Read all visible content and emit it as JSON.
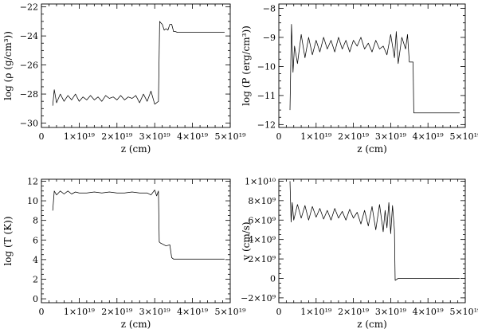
{
  "chart_data": [
    {
      "type": "line",
      "title": "",
      "xlabel": "z (cm)",
      "ylabel": "log (ρ (g/cm³))",
      "xlim": [
        0,
        5e+19
      ],
      "ylim": [
        -30.3,
        -21.8
      ],
      "x_ticks": [
        0,
        1e+19,
        2e+19,
        3e+19,
        4e+19,
        5e+19
      ],
      "x_tick_labels": [
        "0",
        "1×10¹⁹",
        "2×10¹⁹",
        "3×10¹⁹",
        "4×10¹⁹",
        "5×10¹⁹"
      ],
      "y_ticks": [
        -30,
        -28,
        -26,
        -24,
        -22
      ],
      "y_tick_labels": [
        "−30",
        "−28",
        "−26",
        "−24",
        "−22"
      ],
      "grid": false,
      "series": [
        {
          "x": [
            3e+18,
            3.4e+18,
            4e+18,
            5e+18,
            6e+18,
            7e+18,
            8e+18,
            9e+18,
            1e+19,
            1.1e+19,
            1.2e+19,
            1.3e+19,
            1.4e+19,
            1.5e+19,
            1.6e+19,
            1.7e+19,
            1.8e+19,
            1.9e+19,
            2e+19,
            2.1e+19,
            2.2e+19,
            2.3e+19,
            2.4e+19,
            2.5e+19,
            2.6e+19,
            2.7e+19,
            2.8e+19,
            2.9e+19,
            3e+19,
            3.1e+19,
            3.13e+19,
            3.16e+19,
            3.2e+19,
            3.25e+19,
            3.3e+19,
            3.35e+19,
            3.4e+19,
            3.45e+19,
            3.5e+19,
            3.55e+19,
            3.6e+19,
            4e+19,
            4.5e+19,
            4.85e+19
          ],
          "y": [
            -28.8,
            -27.7,
            -28.6,
            -28.0,
            -28.5,
            -28.1,
            -28.4,
            -28.0,
            -28.5,
            -28.2,
            -28.4,
            -28.1,
            -28.4,
            -28.2,
            -28.5,
            -28.1,
            -28.3,
            -28.2,
            -28.4,
            -28.1,
            -28.4,
            -28.2,
            -28.3,
            -28.1,
            -28.6,
            -28.0,
            -28.5,
            -27.8,
            -28.7,
            -28.5,
            -23.0,
            -23.1,
            -23.2,
            -23.6,
            -23.5,
            -23.6,
            -23.2,
            -23.2,
            -23.7,
            -23.7,
            -23.75,
            -23.75,
            -23.75,
            -23.75
          ]
        }
      ]
    },
    {
      "type": "line",
      "title": "",
      "xlabel": "z (cm)",
      "ylabel": "log (P (erg/cm³))",
      "xlim": [
        0,
        5e+19
      ],
      "ylim": [
        -12.1,
        -7.85
      ],
      "x_ticks": [
        0,
        1e+19,
        2e+19,
        3e+19,
        4e+19,
        5e+19
      ],
      "x_tick_labels": [
        "0",
        "1×10¹⁹",
        "2×10¹⁹",
        "3×10¹⁹",
        "4×10¹⁹",
        "5×10¹⁹"
      ],
      "y_ticks": [
        -12,
        -11,
        -10,
        -9,
        -8
      ],
      "y_tick_labels": [
        "−12",
        "−11",
        "−10",
        "−9",
        "−8"
      ],
      "grid": false,
      "series": [
        {
          "x": [
            3e+18,
            3.4e+18,
            3.8e+18,
            4.2e+18,
            5e+18,
            6e+18,
            7e+18,
            8e+18,
            9e+18,
            1e+19,
            1.1e+19,
            1.2e+19,
            1.3e+19,
            1.4e+19,
            1.5e+19,
            1.6e+19,
            1.7e+19,
            1.8e+19,
            1.9e+19,
            2e+19,
            2.1e+19,
            2.2e+19,
            2.3e+19,
            2.4e+19,
            2.5e+19,
            2.6e+19,
            2.7e+19,
            2.8e+19,
            2.9e+19,
            3e+19,
            3.1e+19,
            3.15e+19,
            3.2e+19,
            3.3e+19,
            3.4e+19,
            3.45e+19,
            3.5e+19,
            3.6e+19,
            3.62e+19,
            4e+19,
            4.5e+19,
            4.85e+19
          ],
          "y": [
            -11.5,
            -8.55,
            -10.2,
            -9.3,
            -9.9,
            -8.9,
            -9.7,
            -9.0,
            -9.6,
            -9.1,
            -9.5,
            -9.0,
            -9.4,
            -9.1,
            -9.5,
            -9.0,
            -9.4,
            -9.1,
            -9.5,
            -9.1,
            -9.3,
            -9.0,
            -9.4,
            -9.2,
            -9.5,
            -9.1,
            -9.4,
            -9.3,
            -9.6,
            -8.9,
            -9.7,
            -8.8,
            -9.9,
            -9.0,
            -9.4,
            -8.9,
            -9.85,
            -9.85,
            -11.6,
            -11.6,
            -11.6,
            -11.6
          ]
        }
      ]
    },
    {
      "type": "line",
      "title": "",
      "xlabel": "z (cm)",
      "ylabel": "log (T (K))",
      "xlim": [
        0,
        5e+19
      ],
      "ylim": [
        -0.4,
        12.2
      ],
      "x_ticks": [
        0,
        1e+19,
        2e+19,
        3e+19,
        4e+19,
        5e+19
      ],
      "x_tick_labels": [
        "0",
        "1×10¹⁹",
        "2×10¹⁹",
        "3×10¹⁹",
        "4×10¹⁹",
        "5×10¹⁹"
      ],
      "y_ticks": [
        0,
        2,
        4,
        6,
        8,
        10,
        12
      ],
      "y_tick_labels": [
        "0",
        "2",
        "4",
        "6",
        "8",
        "10",
        "12"
      ],
      "grid": false,
      "series": [
        {
          "x": [
            3e+18,
            3.4e+18,
            4e+18,
            5e+18,
            6e+18,
            7e+18,
            8e+18,
            9e+18,
            1e+19,
            1.2e+19,
            1.4e+19,
            1.6e+19,
            1.8e+19,
            2e+19,
            2.2e+19,
            2.4e+19,
            2.6e+19,
            2.8e+19,
            2.9e+19,
            3e+19,
            3.05e+19,
            3.1e+19,
            3.12e+19,
            3.15e+19,
            3.2e+19,
            3.3e+19,
            3.4e+19,
            3.45e+19,
            3.5e+19,
            3.55e+19,
            4e+19,
            4.5e+19,
            4.85e+19
          ],
          "y": [
            9.0,
            11.0,
            10.6,
            11.0,
            10.7,
            11.0,
            10.7,
            10.9,
            10.8,
            10.8,
            10.9,
            10.8,
            10.9,
            10.8,
            10.8,
            10.9,
            10.8,
            10.8,
            10.6,
            11.1,
            10.5,
            11.0,
            5.8,
            5.7,
            5.6,
            5.4,
            5.5,
            4.2,
            4.05,
            4.05,
            4.05,
            4.05,
            4.05
          ]
        }
      ]
    },
    {
      "type": "line",
      "title": "",
      "xlabel": "z (cm)",
      "ylabel": "v (cm/s)",
      "xlim": [
        0,
        5e+19
      ],
      "ylim": [
        -2500000000.0,
        10200000000.0
      ],
      "x_ticks": [
        0,
        1e+19,
        2e+19,
        3e+19,
        4e+19,
        5e+19
      ],
      "x_tick_labels": [
        "0",
        "1×10¹⁹",
        "2×10¹⁹",
        "3×10¹⁹",
        "4×10¹⁹",
        "5×10¹⁹"
      ],
      "y_ticks": [
        -2000000000.0,
        0,
        2000000000.0,
        4000000000.0,
        6000000000.0,
        8000000000.0,
        10000000000.0
      ],
      "y_tick_labels": [
        "−2×10⁹",
        "0",
        "2×10⁹",
        "4×10⁹",
        "6×10⁹",
        "8×10⁹",
        "1×10¹⁰"
      ],
      "grid": false,
      "series": [
        {
          "x": [
            3e+18,
            3.3e+18,
            3.6e+18,
            4e+18,
            5e+18,
            6e+18,
            7e+18,
            8e+18,
            9e+18,
            1e+19,
            1.1e+19,
            1.2e+19,
            1.3e+19,
            1.4e+19,
            1.5e+19,
            1.6e+19,
            1.7e+19,
            1.8e+19,
            1.9e+19,
            2e+19,
            2.1e+19,
            2.2e+19,
            2.3e+19,
            2.4e+19,
            2.5e+19,
            2.6e+19,
            2.7e+19,
            2.8e+19,
            2.85e+19,
            2.9e+19,
            2.95e+19,
            3e+19,
            3.05e+19,
            3.1e+19,
            3.12e+19,
            3.2e+19,
            3.5e+19,
            4e+19,
            4.5e+19,
            4.85e+19
          ],
          "y": [
            10000000000.0,
            5800000000.0,
            7800000000.0,
            6000000000.0,
            7600000000.0,
            6200000000.0,
            7500000000.0,
            6000000000.0,
            7400000000.0,
            6300000000.0,
            7200000000.0,
            6100000000.0,
            7000000000.0,
            6000000000.0,
            7200000000.0,
            6200000000.0,
            6900000000.0,
            6000000000.0,
            7100000000.0,
            6200000000.0,
            6800000000.0,
            5600000000.0,
            7000000000.0,
            5400000000.0,
            7400000000.0,
            5000000000.0,
            7600000000.0,
            4800000000.0,
            7000000000.0,
            5200000000.0,
            7800000000.0,
            4600000000.0,
            7500000000.0,
            5000000000.0,
            -200000000.0,
            0,
            0,
            0,
            0,
            0
          ]
        }
      ]
    }
  ]
}
